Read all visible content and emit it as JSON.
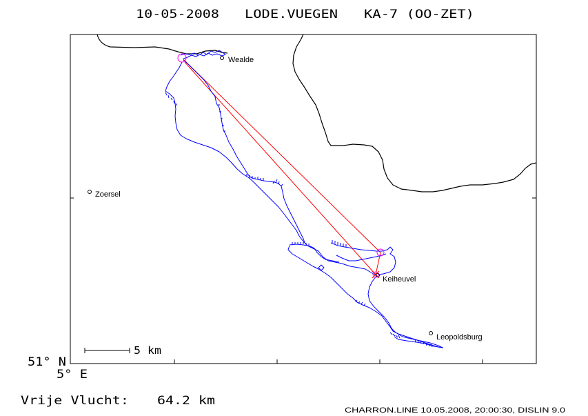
{
  "title": {
    "date": "10-05-2008",
    "pilot": "LODE.VUEGEN",
    "glider": "KA-7 (OO-ZET)"
  },
  "axes": {
    "lat_label": "51° N",
    "lon_label": "5° E"
  },
  "scale_bar": {
    "label": "5 km"
  },
  "places": [
    {
      "name": "Wealde"
    },
    {
      "name": "Zoersel"
    },
    {
      "name": "Keiheuvel"
    },
    {
      "name": "Leopoldsburg"
    }
  ],
  "distance": {
    "label": "Vrije Vlucht:",
    "value": "64.2 km"
  },
  "footer": "CHARRON.LINE 10.05.2008, 20:00:30, DISLIN 9.0",
  "colors": {
    "track": "#0000ff",
    "task": "#ff0000",
    "turnpoint": "#ff00ff",
    "border": "#000000",
    "frame": "#000000",
    "background": "#ffffff"
  }
}
